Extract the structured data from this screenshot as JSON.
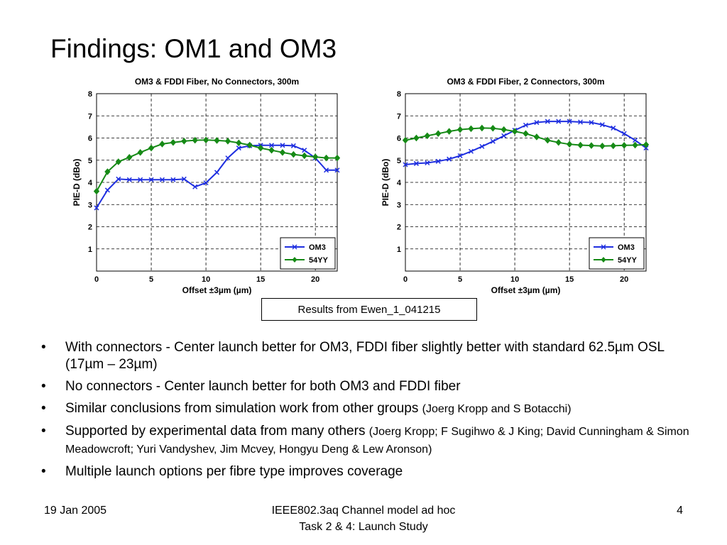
{
  "slide": {
    "title": "Findings: OM1 and OM3",
    "results_caption": "Results from Ewen_1_041215",
    "bullets": [
      {
        "bullet": "•",
        "main": "With connectors - Center launch better for OM3, FDDI fiber slightly better with standard 62.5µm OSL (17µm – 23µm)",
        "small": ""
      },
      {
        "bullet": "•",
        "main": "No connectors  - Center launch better for both OM3 and FDDI fiber",
        "small": ""
      },
      {
        "bullet": "•",
        "main": "Similar conclusions from simulation work from other groups ",
        "small": "(Joerg Kropp and S Botacchi)"
      },
      {
        "bullet": "•",
        "main": "Supported by experimental data from many others ",
        "small": "(Joerg Kropp; F Sugihwo & J King; David Cunningham & Simon Meadowcroft; Yuri Vandyshev, Jim Mcvey, Hongyu Deng & Lew Aronson)"
      },
      {
        "bullet": "•",
        "main": "Multiple launch options per fibre type improves coverage",
        "small": ""
      }
    ],
    "footer": {
      "date": "19 Jan 2005",
      "center_line1": "IEEE802.3aq Channel model ad hoc",
      "center_line2": "Task 2 & 4: Launch Study",
      "page_number": "4"
    }
  },
  "colors": {
    "om3": "#1f2fe0",
    "yy54": "#168a16",
    "grid": "#000000"
  },
  "chart_data": [
    {
      "type": "line",
      "title": "OM3 & FDDI Fiber, No Connectors, 300m",
      "xlabel": "Offset ±3µm (µm)",
      "ylabel": "PIE-D (dBo)",
      "xlim": [
        0,
        22
      ],
      "ylim": [
        0,
        8
      ],
      "xticks": [
        0,
        5,
        10,
        15,
        20
      ],
      "yticks": [
        1,
        2,
        3,
        4,
        5,
        6,
        7,
        8
      ],
      "grid": true,
      "legend": "bottom-right",
      "x": [
        0,
        1,
        2,
        3,
        4,
        5,
        6,
        7,
        8,
        9,
        10,
        11,
        12,
        13,
        14,
        15,
        16,
        17,
        18,
        19,
        20,
        21,
        22
      ],
      "series": [
        {
          "name": "OM3",
          "marker": "x",
          "values": [
            2.85,
            3.65,
            4.15,
            4.12,
            4.12,
            4.12,
            4.12,
            4.12,
            4.15,
            3.8,
            3.98,
            4.45,
            5.1,
            5.55,
            5.65,
            5.67,
            5.67,
            5.67,
            5.65,
            5.45,
            5.1,
            4.55,
            4.55
          ]
        },
        {
          "name": "54YY",
          "marker": "diamond",
          "values": [
            3.6,
            4.48,
            4.93,
            5.13,
            5.35,
            5.55,
            5.73,
            5.8,
            5.86,
            5.9,
            5.91,
            5.89,
            5.86,
            5.78,
            5.68,
            5.55,
            5.45,
            5.35,
            5.26,
            5.2,
            5.15,
            5.1,
            5.1
          ]
        }
      ]
    },
    {
      "type": "line",
      "title": "OM3 & FDDI Fiber, 2 Connectors, 300m",
      "xlabel": "Offset ±3µm (µm)",
      "ylabel": "PIE-D (dBo)",
      "xlim": [
        0,
        22
      ],
      "ylim": [
        0,
        8
      ],
      "xticks": [
        0,
        5,
        10,
        15,
        20
      ],
      "yticks": [
        1,
        2,
        3,
        4,
        5,
        6,
        7,
        8
      ],
      "grid": true,
      "legend": "bottom-right",
      "x": [
        0,
        1,
        2,
        3,
        4,
        5,
        6,
        7,
        8,
        9,
        10,
        11,
        12,
        13,
        14,
        15,
        16,
        17,
        18,
        19,
        20,
        21,
        22
      ],
      "series": [
        {
          "name": "OM3",
          "marker": "x",
          "values": [
            4.8,
            4.85,
            4.88,
            4.95,
            5.05,
            5.2,
            5.4,
            5.62,
            5.85,
            6.1,
            6.35,
            6.58,
            6.7,
            6.75,
            6.75,
            6.75,
            6.72,
            6.7,
            6.6,
            6.45,
            6.2,
            5.9,
            5.55
          ]
        },
        {
          "name": "54YY",
          "marker": "diamond",
          "values": [
            5.9,
            6.0,
            6.1,
            6.2,
            6.3,
            6.38,
            6.42,
            6.45,
            6.44,
            6.38,
            6.3,
            6.2,
            6.05,
            5.9,
            5.8,
            5.72,
            5.68,
            5.66,
            5.64,
            5.65,
            5.67,
            5.68,
            5.7
          ]
        }
      ]
    }
  ]
}
